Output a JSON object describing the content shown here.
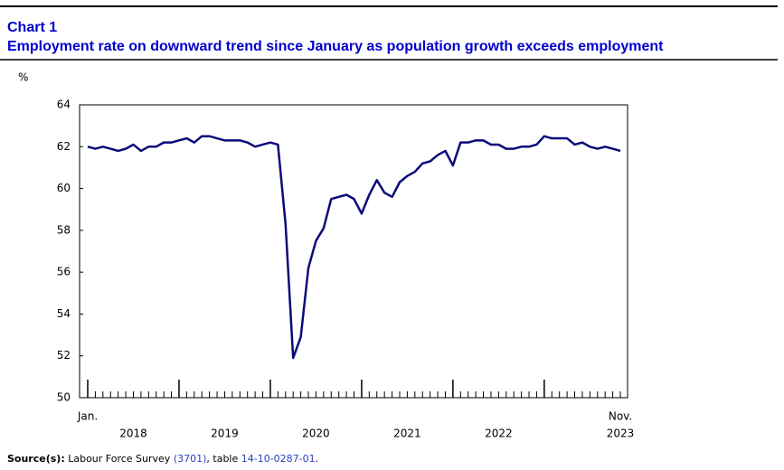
{
  "chart_data": {
    "type": "line",
    "title": "Chart 1",
    "subtitle": "Employment rate on downward trend since January as population growth exceeds employment",
    "y_label": "%",
    "categories": [
      "Jan.",
      null,
      null,
      null,
      null,
      null,
      null,
      null,
      null,
      null,
      null,
      null,
      null,
      null,
      null,
      null,
      null,
      null,
      null,
      null,
      null,
      null,
      null,
      null,
      null,
      null,
      null,
      null,
      null,
      null,
      null,
      null,
      null,
      null,
      null,
      null,
      null,
      null,
      null,
      null,
      null,
      null,
      null,
      null,
      null,
      null,
      null,
      null,
      null,
      null,
      null,
      null,
      null,
      null,
      null,
      null,
      null,
      null,
      null,
      null,
      null,
      null,
      null,
      null,
      null,
      null,
      null,
      null,
      null,
      null,
      "Nov."
    ],
    "year_labels": [
      "2018",
      "2019",
      "2020",
      "2021",
      "2022",
      "2023"
    ],
    "series": [
      {
        "color": "#0a0a7a",
        "values": [
          62.0,
          61.9,
          62.0,
          61.9,
          61.8,
          61.9,
          62.1,
          61.8,
          62.0,
          62.0,
          62.2,
          62.2,
          62.3,
          62.4,
          62.2,
          62.5,
          62.5,
          62.4,
          62.3,
          62.3,
          62.3,
          62.2,
          62.0,
          62.1,
          62.2,
          62.1,
          58.3,
          51.9,
          52.9,
          56.2,
          57.5,
          58.1,
          59.5,
          59.6,
          59.7,
          59.5,
          58.8,
          59.7,
          60.4,
          59.8,
          59.6,
          60.3,
          60.6,
          60.8,
          61.2,
          61.3,
          61.6,
          61.8,
          61.1,
          62.2,
          62.2,
          62.3,
          62.3,
          62.1,
          62.1,
          61.9,
          61.9,
          62.0,
          62.0,
          62.1,
          62.5,
          62.4,
          62.4,
          62.4,
          62.1,
          62.2,
          62.0,
          61.9,
          62.0,
          61.9,
          61.8
        ]
      }
    ],
    "ylim": [
      50,
      64
    ],
    "yticks": [
      50,
      52,
      54,
      56,
      58,
      60,
      62,
      64
    ],
    "source": {
      "label": "Source(s):",
      "parts": [
        "Labour Force Survey ",
        "(3701)",
        ", table ",
        "14-10-0287-01",
        "."
      ]
    }
  }
}
